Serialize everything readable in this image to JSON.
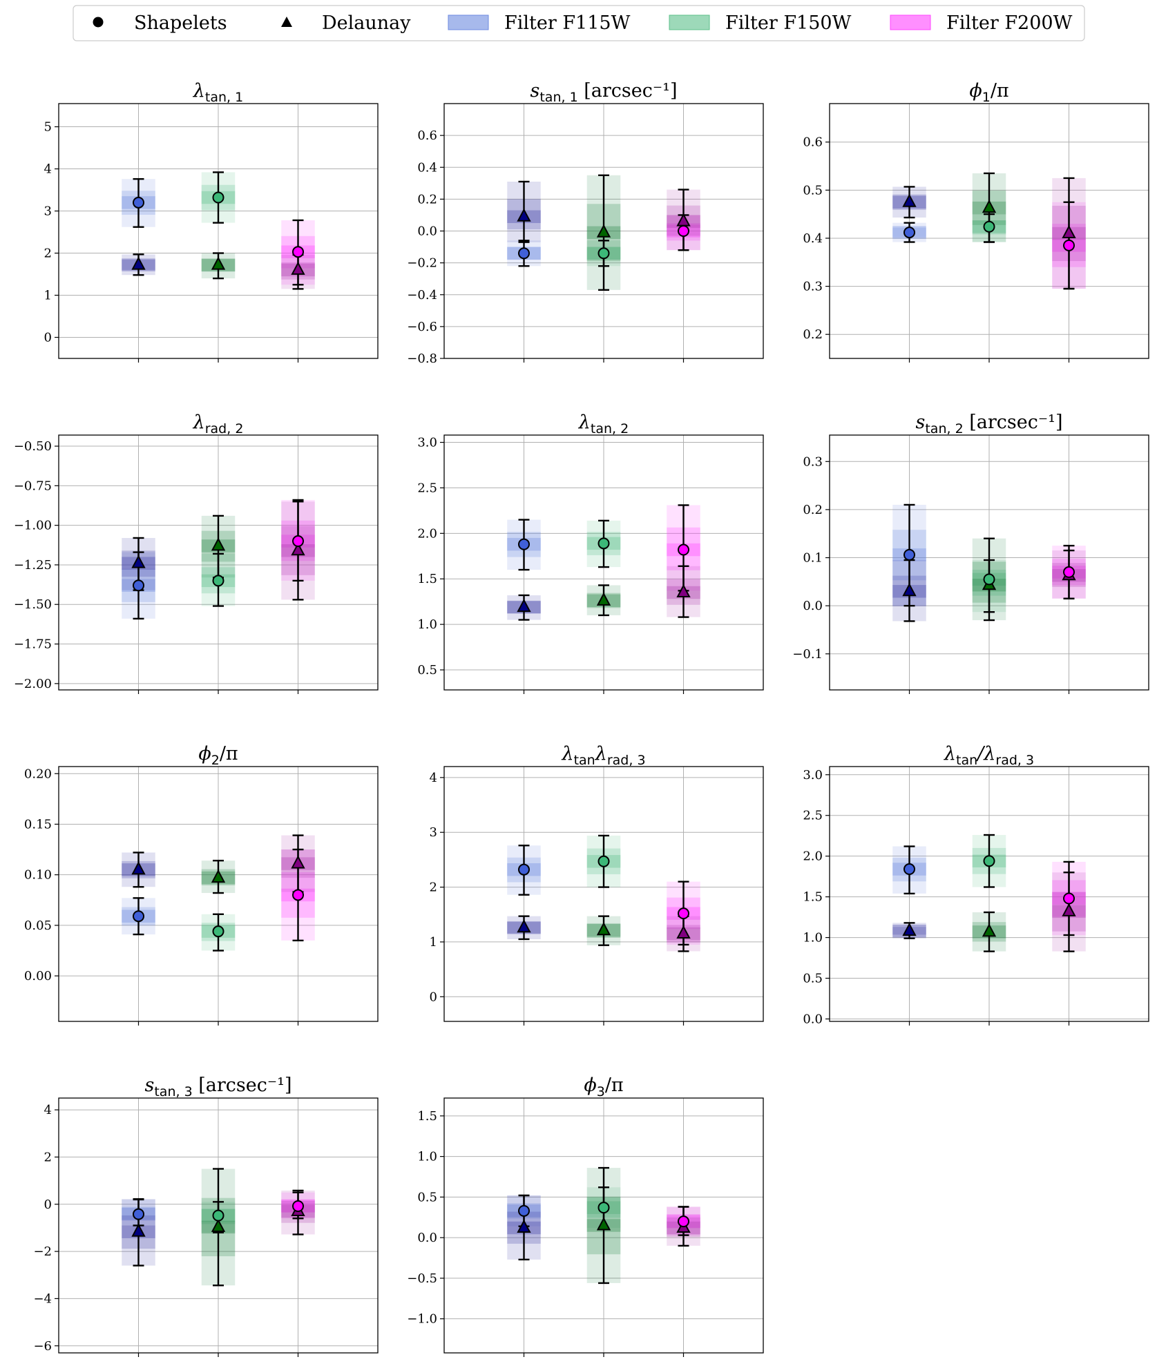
{
  "legend": {
    "items": [
      {
        "kind": "marker",
        "marker": "circle",
        "label": "Shapelets"
      },
      {
        "kind": "marker",
        "marker": "triangle",
        "label": "Delaunay"
      },
      {
        "kind": "patch",
        "color": "#6d8ae0",
        "label": "Filter F115W"
      },
      {
        "kind": "patch",
        "color": "#5cc08a",
        "label": "Filter F150W"
      },
      {
        "kind": "patch",
        "color": "#ff44ff",
        "label": "Filter F200W"
      }
    ]
  },
  "colors": {
    "F115W": {
      "fill": "#4060d8",
      "band": "#6d8ae0",
      "band_dark": "#4040a8"
    },
    "F150W": {
      "fill": "#3cb878",
      "band": "#5cc08a",
      "band_dark": "#2e8a4e"
    },
    "F200W": {
      "fill": "#ff00ff",
      "band": "#ff44ff",
      "band_dark": "#b040b0"
    },
    "delaunay_marker": [
      "#000080",
      "#006400",
      "#800080"
    ]
  },
  "chart_data": [
    {
      "type": "errorbar",
      "title_sym": "λ",
      "title_sub": "tan, 1",
      "title_suffix": "",
      "ylim": [
        -0.5,
        5.55
      ],
      "yticks": [
        "0",
        "1",
        "2",
        "3",
        "4",
        "5"
      ],
      "ytick_values": [
        0,
        1,
        2,
        3,
        4,
        5
      ],
      "shapelets": [
        {
          "filter": "F115W",
          "value": 3.2,
          "low": 2.62,
          "high": 3.76
        },
        {
          "filter": "F150W",
          "value": 3.32,
          "low": 2.72,
          "high": 3.92
        },
        {
          "filter": "F200W",
          "value": 2.03,
          "low": 1.25,
          "high": 2.78
        }
      ],
      "delaunay": [
        {
          "filter": "F115W",
          "value": 1.72,
          "low": 1.48,
          "high": 1.97
        },
        {
          "filter": "F150W",
          "value": 1.72,
          "low": 1.4,
          "high": 2.0
        },
        {
          "filter": "F200W",
          "value": 1.6,
          "low": 1.15,
          "high": 1.96
        }
      ]
    },
    {
      "type": "errorbar",
      "title_sym": "s",
      "title_sub": "tan, 1",
      "title_suffix": "[arcsec⁻¹]",
      "ylim": [
        -0.8,
        0.8
      ],
      "yticks": [
        "−0.8",
        "−0.6",
        "−0.4",
        "−0.2",
        "0.0",
        "0.2",
        "0.4",
        "0.6"
      ],
      "ytick_values": [
        -0.8,
        -0.6,
        -0.4,
        -0.2,
        0.0,
        0.2,
        0.4,
        0.6
      ],
      "shapelets": [
        {
          "filter": "F115W",
          "value": -0.14,
          "low": -0.22,
          "high": -0.06
        },
        {
          "filter": "F150W",
          "value": -0.14,
          "low": -0.22,
          "high": -0.06
        },
        {
          "filter": "F200W",
          "value": 0.0,
          "low": -0.12,
          "high": 0.1
        }
      ],
      "delaunay": [
        {
          "filter": "F115W",
          "value": 0.09,
          "low": -0.07,
          "high": 0.31
        },
        {
          "filter": "F150W",
          "value": -0.01,
          "low": -0.37,
          "high": 0.35
        },
        {
          "filter": "F200W",
          "value": 0.06,
          "low": -0.12,
          "high": 0.26
        }
      ]
    },
    {
      "type": "errorbar",
      "title_sym": "ϕ",
      "title_sub": "1",
      "title_suffix": "/π",
      "ylim": [
        0.15,
        0.68
      ],
      "yticks": [
        "0.2",
        "0.3",
        "0.4",
        "0.5",
        "0.6"
      ],
      "ytick_values": [
        0.2,
        0.3,
        0.4,
        0.5,
        0.6
      ],
      "shapelets": [
        {
          "filter": "F115W",
          "value": 0.412,
          "low": 0.392,
          "high": 0.432
        },
        {
          "filter": "F150W",
          "value": 0.424,
          "low": 0.392,
          "high": 0.45
        },
        {
          "filter": "F200W",
          "value": 0.385,
          "low": 0.295,
          "high": 0.475
        }
      ],
      "delaunay": [
        {
          "filter": "F115W",
          "value": 0.475,
          "low": 0.443,
          "high": 0.507
        },
        {
          "filter": "F150W",
          "value": 0.463,
          "low": 0.392,
          "high": 0.535
        },
        {
          "filter": "F200W",
          "value": 0.41,
          "low": 0.295,
          "high": 0.525
        }
      ]
    },
    {
      "type": "errorbar",
      "title_sym": "λ",
      "title_sub": "rad, 2",
      "title_suffix": "",
      "ylim": [
        -2.04,
        -0.43
      ],
      "yticks": [
        "−2.00",
        "−1.75",
        "−1.50",
        "−1.25",
        "−1.00",
        "−0.75",
        "−0.50"
      ],
      "ytick_values": [
        -2.0,
        -1.75,
        -1.5,
        -1.25,
        -1.0,
        -0.75,
        -0.5
      ],
      "shapelets": [
        {
          "filter": "F115W",
          "value": -1.38,
          "low": -1.59,
          "high": -1.17
        },
        {
          "filter": "F150W",
          "value": -1.35,
          "low": -1.51,
          "high": -1.18
        },
        {
          "filter": "F200W",
          "value": -1.1,
          "low": -1.35,
          "high": -0.84
        }
      ],
      "delaunay": [
        {
          "filter": "F115W",
          "value": -1.24,
          "low": -1.41,
          "high": -1.08
        },
        {
          "filter": "F150W",
          "value": -1.13,
          "low": -1.33,
          "high": -0.94
        },
        {
          "filter": "F200W",
          "value": -1.16,
          "low": -1.47,
          "high": -0.85
        }
      ]
    },
    {
      "type": "errorbar",
      "title_sym": "λ",
      "title_sub": "tan, 2",
      "title_suffix": "",
      "ylim": [
        0.28,
        3.08
      ],
      "yticks": [
        "0.5",
        "1.0",
        "1.5",
        "2.0",
        "2.5",
        "3.0"
      ],
      "ytick_values": [
        0.5,
        1.0,
        1.5,
        2.0,
        2.5,
        3.0
      ],
      "shapelets": [
        {
          "filter": "F115W",
          "value": 1.88,
          "low": 1.6,
          "high": 2.15
        },
        {
          "filter": "F150W",
          "value": 1.89,
          "low": 1.63,
          "high": 2.14
        },
        {
          "filter": "F200W",
          "value": 1.82,
          "low": 1.37,
          "high": 2.31
        }
      ],
      "delaunay": [
        {
          "filter": "F115W",
          "value": 1.19,
          "low": 1.05,
          "high": 1.32
        },
        {
          "filter": "F150W",
          "value": 1.26,
          "low": 1.1,
          "high": 1.43
        },
        {
          "filter": "F200W",
          "value": 1.35,
          "low": 1.08,
          "high": 1.64
        }
      ]
    },
    {
      "type": "errorbar",
      "title_sym": "s",
      "title_sub": "tan, 2",
      "title_suffix": "[arcsec⁻¹]",
      "ylim": [
        -0.175,
        0.355
      ],
      "yticks": [
        "−0.1",
        "0.0",
        "0.1",
        "0.2",
        "0.3"
      ],
      "ytick_values": [
        -0.1,
        0.0,
        0.1,
        0.2,
        0.3
      ],
      "shapelets": [
        {
          "filter": "F115W",
          "value": 0.106,
          "low": 0.0,
          "high": 0.21
        },
        {
          "filter": "F150W",
          "value": 0.055,
          "low": -0.013,
          "high": 0.095
        },
        {
          "filter": "F200W",
          "value": 0.07,
          "low": 0.015,
          "high": 0.125
        }
      ],
      "delaunay": [
        {
          "filter": "F115W",
          "value": 0.03,
          "low": -0.032,
          "high": 0.095
        },
        {
          "filter": "F150W",
          "value": 0.043,
          "low": -0.03,
          "high": 0.14
        },
        {
          "filter": "F200W",
          "value": 0.063,
          "low": 0.015,
          "high": 0.115
        }
      ]
    },
    {
      "type": "errorbar",
      "title_sym": "ϕ",
      "title_sub": "2",
      "title_suffix": "/π",
      "ylim": [
        -0.045,
        0.207
      ],
      "yticks": [
        "0.00",
        "0.05",
        "0.10",
        "0.15",
        "0.20"
      ],
      "ytick_values": [
        0.0,
        0.05,
        0.1,
        0.15,
        0.2
      ],
      "shapelets": [
        {
          "filter": "F115W",
          "value": 0.059,
          "low": 0.041,
          "high": 0.077
        },
        {
          "filter": "F150W",
          "value": 0.044,
          "low": 0.025,
          "high": 0.061
        },
        {
          "filter": "F200W",
          "value": 0.08,
          "low": 0.035,
          "high": 0.125
        }
      ],
      "delaunay": [
        {
          "filter": "F115W",
          "value": 0.105,
          "low": 0.088,
          "high": 0.122
        },
        {
          "filter": "F150W",
          "value": 0.097,
          "low": 0.082,
          "high": 0.114
        },
        {
          "filter": "F200W",
          "value": 0.111,
          "low": 0.083,
          "high": 0.139
        }
      ]
    },
    {
      "type": "errorbar",
      "title_sym": "λ",
      "title_sub": "tan",
      "title_suffix": "λ",
      "title_sub2": "rad, 3",
      "ylim": [
        -0.45,
        4.2
      ],
      "yticks": [
        "0",
        "1",
        "2",
        "3",
        "4"
      ],
      "ytick_values": [
        0,
        1,
        2,
        3,
        4
      ],
      "shapelets": [
        {
          "filter": "F115W",
          "value": 2.32,
          "low": 1.86,
          "high": 2.76
        },
        {
          "filter": "F150W",
          "value": 2.47,
          "low": 2.0,
          "high": 2.94
        },
        {
          "filter": "F200W",
          "value": 1.52,
          "low": 0.95,
          "high": 2.1
        }
      ],
      "delaunay": [
        {
          "filter": "F115W",
          "value": 1.26,
          "low": 1.05,
          "high": 1.47
        },
        {
          "filter": "F150W",
          "value": 1.21,
          "low": 0.94,
          "high": 1.47
        },
        {
          "filter": "F200W",
          "value": 1.15,
          "low": 0.83,
          "high": 1.47
        }
      ]
    },
    {
      "type": "errorbar",
      "title_sym": "λ",
      "title_sub": "tan",
      "title_suffix": "/λ",
      "title_sub2": "rad, 3",
      "ylim": [
        -0.03,
        3.1
      ],
      "yticks": [
        "0.0",
        "0.5",
        "1.0",
        "1.5",
        "2.0",
        "2.5",
        "3.0"
      ],
      "ytick_values": [
        0.0,
        0.5,
        1.0,
        1.5,
        2.0,
        2.5,
        3.0
      ],
      "shapelets": [
        {
          "filter": "F115W",
          "value": 1.84,
          "low": 1.54,
          "high": 2.12
        },
        {
          "filter": "F150W",
          "value": 1.94,
          "low": 1.62,
          "high": 2.26
        },
        {
          "filter": "F200W",
          "value": 1.48,
          "low": 1.03,
          "high": 1.93
        }
      ],
      "delaunay": [
        {
          "filter": "F115W",
          "value": 1.08,
          "low": 0.99,
          "high": 1.18
        },
        {
          "filter": "F150W",
          "value": 1.07,
          "low": 0.83,
          "high": 1.31
        },
        {
          "filter": "F200W",
          "value": 1.32,
          "low": 0.83,
          "high": 1.8
        }
      ]
    },
    {
      "type": "errorbar",
      "title_sym": "s",
      "title_sub": "tan, 3",
      "title_suffix": "[arcsec⁻¹]",
      "ylim": [
        -6.3,
        4.5
      ],
      "yticks": [
        "−6",
        "−4",
        "−2",
        "0",
        "2",
        "4"
      ],
      "ytick_values": [
        -6,
        -4,
        -2,
        0,
        2,
        4
      ],
      "shapelets": [
        {
          "filter": "F115W",
          "value": -0.42,
          "low": -0.9,
          "high": 0.2
        },
        {
          "filter": "F150W",
          "value": -0.48,
          "low": -1.2,
          "high": 0.1
        },
        {
          "filter": "F200W",
          "value": -0.08,
          "low": -0.6,
          "high": 0.5
        }
      ],
      "delaunay": [
        {
          "filter": "F115W",
          "value": -1.17,
          "low": -2.6,
          "high": 0.22
        },
        {
          "filter": "F150W",
          "value": -0.97,
          "low": -3.44,
          "high": 1.5
        },
        {
          "filter": "F200W",
          "value": -0.3,
          "low": -1.28,
          "high": 0.58
        }
      ]
    },
    {
      "type": "errorbar",
      "title_sym": "ϕ",
      "title_sub": "3",
      "title_suffix": "/π",
      "ylim": [
        -1.42,
        1.72
      ],
      "yticks": [
        "−1.0",
        "−0.5",
        "0.0",
        "0.5",
        "1.0",
        "1.5"
      ],
      "ytick_values": [
        -1.0,
        -0.5,
        0.0,
        0.5,
        1.0,
        1.5
      ],
      "shapelets": [
        {
          "filter": "F115W",
          "value": 0.33,
          "low": 0.14,
          "high": 0.52
        },
        {
          "filter": "F150W",
          "value": 0.37,
          "low": 0.12,
          "high": 0.62
        },
        {
          "filter": "F200W",
          "value": 0.2,
          "low": 0.03,
          "high": 0.38
        }
      ],
      "delaunay": [
        {
          "filter": "F115W",
          "value": 0.12,
          "low": -0.27,
          "high": 0.52
        },
        {
          "filter": "F150W",
          "value": 0.15,
          "low": -0.56,
          "high": 0.86
        },
        {
          "filter": "F200W",
          "value": 0.12,
          "low": -0.1,
          "high": 0.38
        }
      ]
    }
  ]
}
